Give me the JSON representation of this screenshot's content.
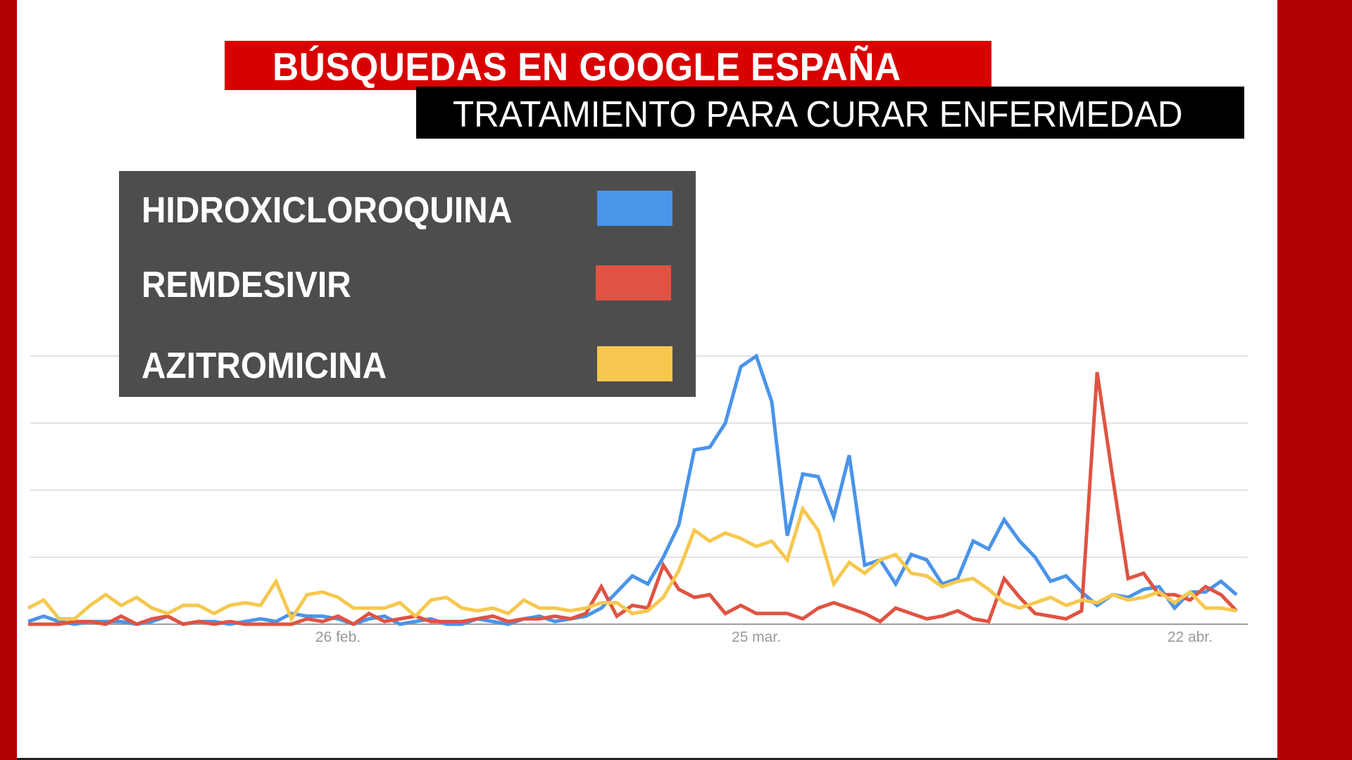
{
  "header": {
    "title": "BÚSQUEDAS EN GOOGLE ESPAÑA",
    "subtitle": "TRATAMIENTO PARA CURAR ENFERMEDAD"
  },
  "colors": {
    "frame_red": "#b00000",
    "title_red": "#d90000",
    "subtitle_bg": "#000000",
    "legend_bg": "#4d4d4d",
    "gridline": "#e0e0e0",
    "axis": "#9e9e9e",
    "tick_label": "#999999"
  },
  "legend": {
    "items": [
      {
        "label": "HIDROXICLOROQUINA",
        "color": "#4a94ea"
      },
      {
        "label": "REMDESIVIR",
        "color": "#e05342"
      },
      {
        "label": "AZITROMICINA",
        "color": "#f6c84f"
      }
    ]
  },
  "chart_data": {
    "type": "line",
    "title": "BÚSQUEDAS EN GOOGLE ESPAÑA",
    "subtitle": "TRATAMIENTO PARA CURAR ENFERMEDAD",
    "xlabel": "",
    "ylabel": "",
    "ylim": [
      0,
      100
    ],
    "grid": true,
    "gridlines": [
      25,
      50,
      75,
      100
    ],
    "legend_position": "top-left",
    "x_start": "6 feb.",
    "x_ticks": [
      {
        "label": "26 feb.",
        "index": 20
      },
      {
        "label": "25 mar.",
        "index": 47
      },
      {
        "label": "22 abr.",
        "index": 75
      }
    ],
    "series": [
      {
        "name": "HIDROXICLOROQUINA",
        "color": "#4a94ea",
        "values": [
          1,
          3,
          1,
          0,
          1,
          1,
          1,
          0,
          1,
          3,
          0,
          1,
          1,
          0,
          1,
          2,
          1,
          4,
          3,
          3,
          2,
          0,
          2,
          3,
          0,
          1,
          2,
          0,
          0,
          2,
          1,
          0,
          2,
          3,
          1,
          2,
          3,
          6,
          12,
          18,
          15,
          25,
          37,
          65,
          66,
          75,
          96,
          100,
          83,
          33,
          56,
          55,
          40,
          63,
          22,
          24,
          15,
          26,
          24,
          15,
          17,
          31,
          28,
          39,
          31,
          25,
          16,
          18,
          12,
          7,
          11,
          10,
          13,
          14,
          6,
          12,
          12,
          16,
          11
        ]
      },
      {
        "name": "REMDESIVIR",
        "color": "#e05342",
        "values": [
          0,
          0,
          0,
          1,
          1,
          0,
          3,
          0,
          2,
          3,
          0,
          1,
          0,
          1,
          0,
          0,
          0,
          0,
          2,
          1,
          3,
          0,
          4,
          1,
          2,
          3,
          1,
          1,
          1,
          2,
          3,
          1,
          2,
          2,
          3,
          2,
          4,
          14,
          3,
          7,
          6,
          22,
          13,
          10,
          11,
          4,
          7,
          4,
          4,
          4,
          2,
          6,
          8,
          6,
          4,
          1,
          6,
          4,
          2,
          3,
          5,
          2,
          1,
          17,
          10,
          4,
          3,
          2,
          5,
          94,
          55,
          17,
          19,
          11,
          11,
          9,
          14,
          11,
          5
        ]
      },
      {
        "name": "AZITROMICINA",
        "color": "#f6c84f",
        "values": [
          6,
          9,
          2,
          2,
          7,
          11,
          7,
          10,
          6,
          4,
          7,
          7,
          4,
          7,
          8,
          7,
          16,
          2,
          11,
          12,
          10,
          6,
          6,
          6,
          8,
          3,
          9,
          10,
          6,
          5,
          6,
          4,
          9,
          6,
          6,
          5,
          6,
          8,
          8,
          4,
          5,
          10,
          20,
          35,
          31,
          34,
          32,
          29,
          31,
          24,
          43,
          35,
          15,
          23,
          19,
          24,
          26,
          19,
          18,
          14,
          16,
          17,
          13,
          8,
          6,
          8,
          10,
          7,
          9,
          8,
          11,
          9,
          10,
          12,
          8,
          12,
          6,
          6,
          5
        ]
      }
    ]
  }
}
